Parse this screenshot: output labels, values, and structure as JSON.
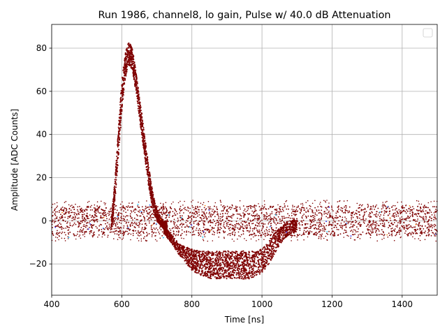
{
  "chart_data": {
    "type": "scatter",
    "title": "Run 1986, channel8, lo gain, Pulse w/ 40.0 dB Attenuation",
    "xlabel": "Time [ns]",
    "ylabel": "Amplitude [ADC Counts]",
    "xlim": [
      400,
      1500
    ],
    "ylim": [
      -34.5,
      91
    ],
    "xticks": [
      400,
      600,
      800,
      1000,
      1200,
      1400
    ],
    "yticks": [
      -20,
      0,
      20,
      40,
      60,
      80
    ],
    "grid": true,
    "legend": {
      "placement": "top-right",
      "entries": []
    },
    "point_color": "#7f0000",
    "outlier_colors": [
      "#1f77ff",
      "#00bfff",
      "#ff7f0e",
      "#2a2aff"
    ],
    "baseline_band": {
      "x": [
        400,
        1500
      ],
      "y_range": [
        -7,
        7
      ]
    },
    "pulse_envelope": {
      "x": [
        570,
        580,
        590,
        600,
        610,
        620,
        630,
        640,
        650,
        660,
        670,
        680,
        690,
        700,
        710,
        720,
        730
      ],
      "y_max": [
        0,
        18,
        42,
        65,
        78,
        83,
        80,
        70,
        58,
        46,
        34,
        22,
        12,
        5,
        2,
        0,
        0
      ],
      "y_min": [
        -5,
        8,
        28,
        50,
        66,
        72,
        70,
        60,
        48,
        36,
        24,
        12,
        4,
        0,
        -2,
        -4,
        -5
      ]
    },
    "undershoot_envelope": {
      "x": [
        720,
        740,
        760,
        780,
        800,
        820,
        840,
        860,
        880,
        900,
        920,
        940,
        960,
        980,
        1000,
        1020,
        1040,
        1060,
        1080,
        1100
      ],
      "y_max": [
        -2,
        -6,
        -10,
        -12,
        -13,
        -14,
        -14,
        -14,
        -14,
        -14,
        -14,
        -14,
        -14,
        -14,
        -13,
        -9,
        -5,
        -2,
        0,
        1
      ],
      "y_min": [
        -6,
        -10,
        -15,
        -19,
        -23,
        -25,
        -26,
        -27,
        -27,
        -27,
        -27,
        -27,
        -27,
        -26,
        -24,
        -20,
        -14,
        -9,
        -6,
        -5
      ]
    }
  }
}
